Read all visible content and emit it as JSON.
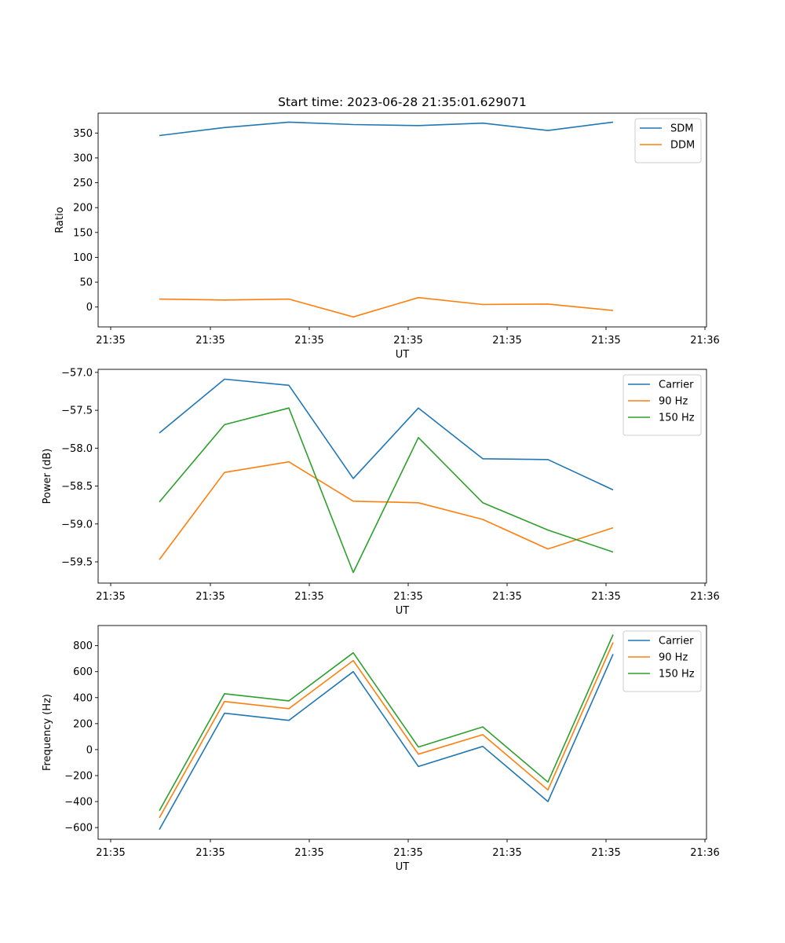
{
  "title": "Start time: 2023-06-28 21:35:01.629071",
  "colors": {
    "blue": "#1f77b4",
    "orange": "#ff7f0e",
    "green": "#2ca02c"
  },
  "chart_data": [
    {
      "type": "line",
      "title": "Start time: 2023-06-28 21:35:01.629071",
      "xlabel": "UT",
      "ylabel": "Ratio",
      "x": [
        "21:35:01.629",
        "21:35:01.742",
        "21:35:01.855",
        "21:35:01.968",
        "21:35:02.081",
        "21:35:02.194",
        "21:35:02.307",
        "21:35:02.420"
      ],
      "xticks": [
        "21:35",
        "21:35",
        "21:35",
        "21:35",
        "21:35",
        "21:35",
        "21:35",
        "21:36"
      ],
      "yticks": [
        0,
        50,
        100,
        150,
        200,
        250,
        300,
        350
      ],
      "ylim": [
        -40,
        390
      ],
      "legend": "top-right",
      "series": [
        {
          "name": "SDM",
          "color": "#1f77b4",
          "values": [
            345,
            361,
            372,
            367,
            365,
            370,
            355,
            372
          ]
        },
        {
          "name": "DDM",
          "color": "#ff7f0e",
          "values": [
            16,
            14,
            16,
            -20,
            19,
            5,
            6,
            -7
          ]
        }
      ]
    },
    {
      "type": "line",
      "title": "",
      "xlabel": "UT",
      "ylabel": "Power (dB)",
      "x": [
        "21:35:01.629",
        "21:35:01.742",
        "21:35:01.855",
        "21:35:01.968",
        "21:35:02.081",
        "21:35:02.194",
        "21:35:02.307",
        "21:35:02.420"
      ],
      "xticks": [
        "21:35",
        "21:35",
        "21:35",
        "21:35",
        "21:35",
        "21:35",
        "21:35",
        "21:36"
      ],
      "yticks": [
        -57.0,
        -57.5,
        -58.0,
        -58.5,
        -59.0,
        -59.5
      ],
      "ytick_labels": [
        "−57.0",
        "−57.5",
        "−58.0",
        "−58.5",
        "−59.0",
        "−59.5"
      ],
      "ylim": [
        -59.78,
        -56.96
      ],
      "legend": "top-right",
      "series": [
        {
          "name": "Carrier",
          "color": "#1f77b4",
          "values": [
            -57.8,
            -57.09,
            -57.17,
            -58.4,
            -57.47,
            -58.14,
            -58.15,
            -58.55
          ]
        },
        {
          "name": "90 Hz",
          "color": "#ff7f0e",
          "values": [
            -59.47,
            -58.32,
            -58.18,
            -58.7,
            -58.72,
            -58.94,
            -59.33,
            -59.05
          ]
        },
        {
          "name": "150 Hz",
          "color": "#2ca02c",
          "values": [
            -58.71,
            -57.69,
            -57.47,
            -59.64,
            -57.86,
            -58.72,
            -59.08,
            -59.37
          ]
        }
      ]
    },
    {
      "type": "line",
      "title": "",
      "xlabel": "UT",
      "ylabel": "Frequency (Hz)",
      "x": [
        "21:35:01.629",
        "21:35:01.742",
        "21:35:01.855",
        "21:35:01.968",
        "21:35:02.081",
        "21:35:02.194",
        "21:35:02.307",
        "21:35:02.420"
      ],
      "xticks": [
        "21:35",
        "21:35",
        "21:35",
        "21:35",
        "21:35",
        "21:35",
        "21:35",
        "21:36"
      ],
      "yticks": [
        800,
        600,
        400,
        200,
        0,
        -200,
        -400,
        -600
      ],
      "ytick_labels": [
        "800",
        "600",
        "400",
        "200",
        "0",
        "−200",
        "−400",
        "−600"
      ],
      "ylim": [
        -690,
        955
      ],
      "legend": "top-right",
      "series": [
        {
          "name": "Carrier",
          "color": "#1f77b4",
          "values": [
            -615,
            280,
            225,
            600,
            -130,
            25,
            -400,
            735
          ]
        },
        {
          "name": "90 Hz",
          "color": "#ff7f0e",
          "values": [
            -525,
            370,
            315,
            685,
            -35,
            115,
            -310,
            825
          ]
        },
        {
          "name": "150 Hz",
          "color": "#2ca02c",
          "values": [
            -470,
            430,
            375,
            745,
            20,
            175,
            -250,
            885
          ]
        }
      ]
    }
  ]
}
